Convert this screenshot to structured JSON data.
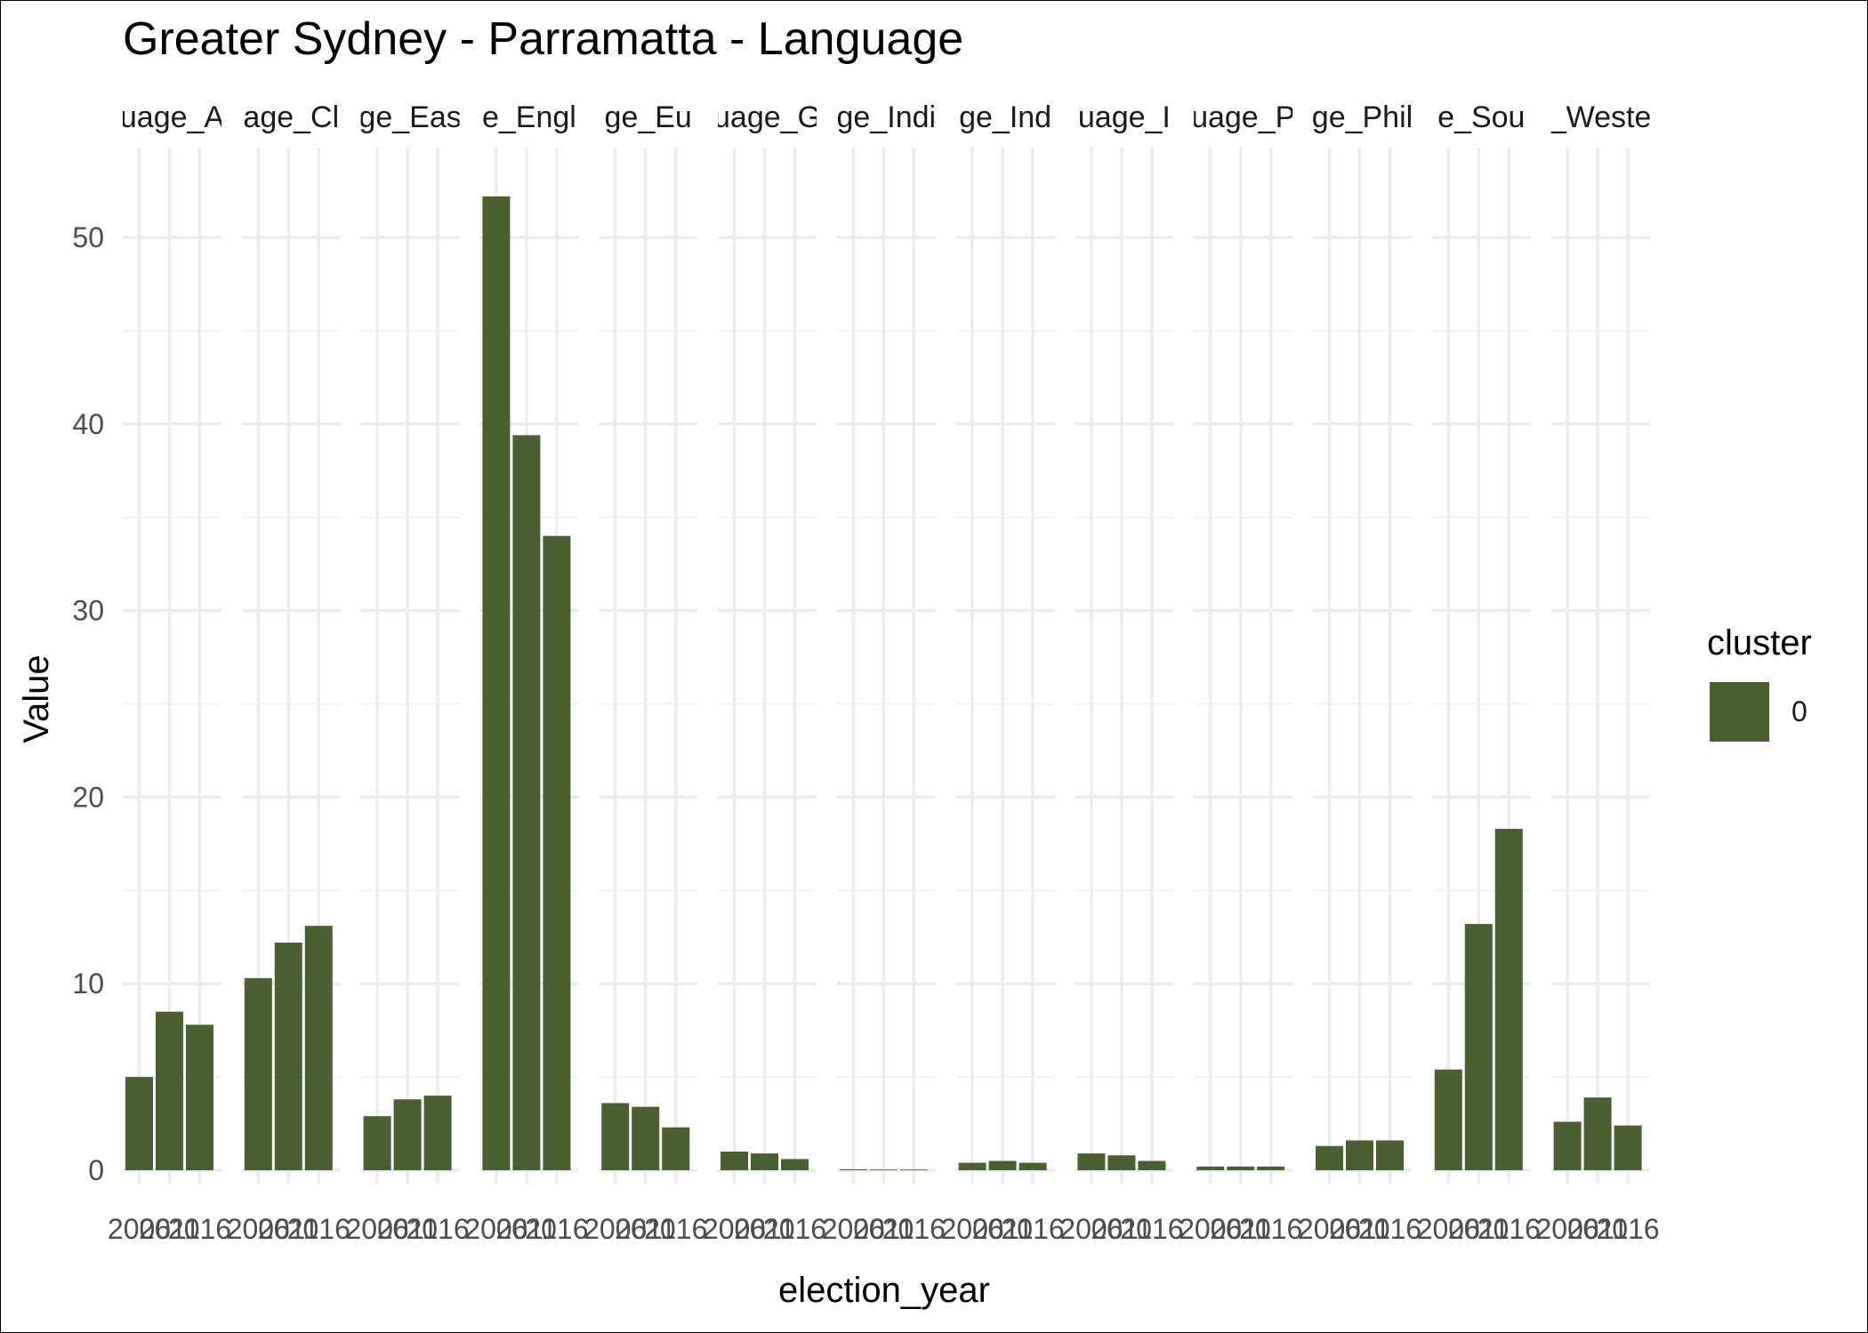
{
  "chart_data": {
    "type": "bar",
    "title": "Greater Sydney - Parramatta - Language",
    "xlabel": "election_year",
    "ylabel": "Value",
    "ylim": [
      0,
      53
    ],
    "yticks": [
      0,
      10,
      20,
      30,
      40,
      50
    ],
    "grid": true,
    "legend": {
      "title": "cluster",
      "placement": "right",
      "entries": [
        {
          "label": "0",
          "color": "#4a6031"
        }
      ]
    },
    "bar_color": "#4a6031",
    "x_categories": [
      "2006",
      "2011",
      "2016"
    ],
    "x_tick_labels": [
      "2006",
      "2011",
      "2016"
    ],
    "facets": [
      {
        "label": "Language_Arabic",
        "strip_text": "uage_A",
        "values": [
          5.0,
          8.5,
          7.8
        ]
      },
      {
        "label": "Language_Chinese",
        "strip_text": "age_Cl",
        "values": [
          10.3,
          12.2,
          13.1
        ]
      },
      {
        "label": "Language_Eastern_European",
        "strip_text": "ge_Eas",
        "values": [
          2.9,
          3.8,
          4.0
        ]
      },
      {
        "label": "Language_English",
        "strip_text": "e_Engl",
        "values": [
          52.2,
          39.4,
          34.0
        ]
      },
      {
        "label": "Language_European",
        "strip_text": "ge_Eu",
        "values": [
          3.6,
          3.4,
          2.3
        ]
      },
      {
        "label": "Language_Greek",
        "strip_text": "uage_G",
        "values": [
          1.0,
          0.9,
          0.6
        ]
      },
      {
        "label": "Language_Indigenous",
        "strip_text": "ge_Indi",
        "values": [
          0.05,
          0.02,
          0.02
        ]
      },
      {
        "label": "Language_Indonesian",
        "strip_text": "ge_Ind",
        "values": [
          0.4,
          0.5,
          0.4
        ]
      },
      {
        "label": "Language_Italian",
        "strip_text": "uage_I",
        "values": [
          0.9,
          0.8,
          0.5
        ]
      },
      {
        "label": "Language_Persian",
        "strip_text": "uage_P",
        "values": [
          0.2,
          0.2,
          0.2
        ]
      },
      {
        "label": "Language_Philippine",
        "strip_text": "ge_Phil",
        "values": [
          1.3,
          1.6,
          1.6
        ]
      },
      {
        "label": "Language_Southern_Asian",
        "strip_text": "e_Sou",
        "values": [
          5.4,
          13.2,
          18.3
        ]
      },
      {
        "label": "Language_Western",
        "strip_text": "_Weste",
        "values": [
          2.6,
          3.9,
          2.4
        ]
      }
    ]
  }
}
